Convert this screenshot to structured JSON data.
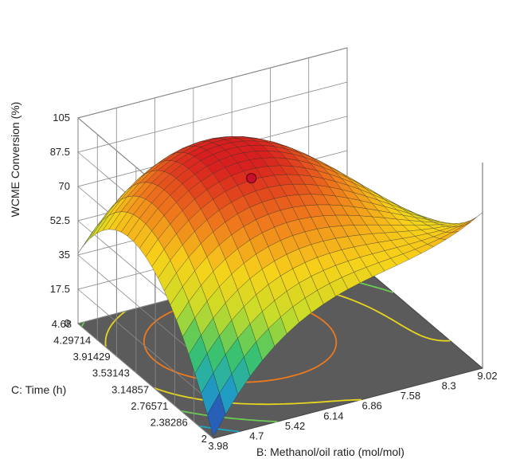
{
  "chart_data": {
    "type": "surface3d",
    "zlabel": "WCME Conversion (%)",
    "xlabel": "B: Methanol/oil ratio (mol/mol)",
    "ylabel": "C: Time (h)",
    "x_ticks": [
      "3.98",
      "4.7",
      "5.42",
      "6.14",
      "6.86",
      "7.58",
      "8.3",
      "9.02"
    ],
    "y_ticks": [
      "2",
      "2.38286",
      "2.76571",
      "3.14857",
      "3.53143",
      "3.91429",
      "4.29714",
      "4.68"
    ],
    "z_ticks": [
      "0",
      "17.5",
      "35",
      "52.5",
      "70",
      "87.5",
      "105"
    ],
    "xlim": [
      3.98,
      9.02
    ],
    "ylim": [
      2,
      4.68
    ],
    "zlim": [
      0,
      105
    ],
    "corner_values": {
      "x_min_y_min": 10,
      "x_min_y_max": 52,
      "x_max_y_min": 50,
      "x_max_y_max": 0
    },
    "peak": {
      "x": 5.9,
      "y": 3.7,
      "z": 97
    },
    "design_point": {
      "x": 6.14,
      "y": 3.53143,
      "z": 84
    },
    "contour_levels": [
      20,
      40,
      60,
      80
    ],
    "colorscale": [
      "#2b3fb0",
      "#1fa4c4",
      "#3cc46a",
      "#c8dc2a",
      "#f7d21a",
      "#ef7a1c",
      "#d81f1f"
    ]
  }
}
